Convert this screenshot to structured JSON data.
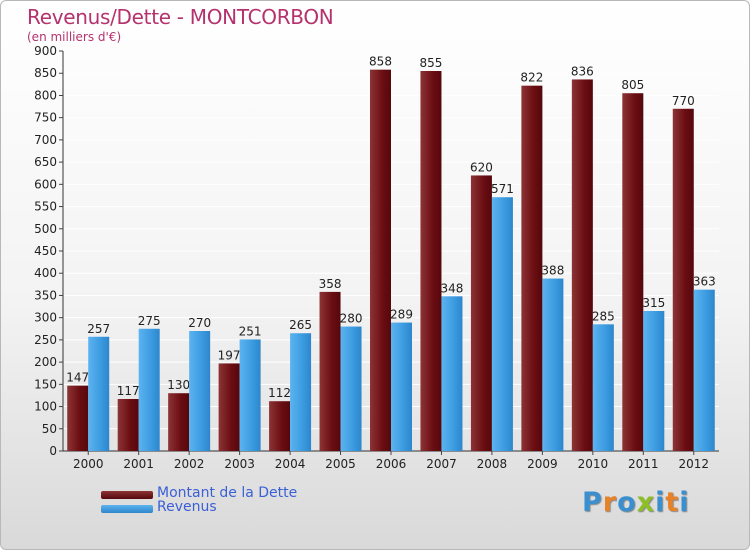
{
  "title": "Revenus/Dette - MONTCORBON",
  "subtitle": "(en milliers d'€)",
  "logo": [
    "P",
    "r",
    "o",
    "x",
    "i",
    "t",
    "i"
  ],
  "colors": {
    "title": "#b5326e",
    "dette": "#6b0d12",
    "revenus": "#3b9be0",
    "legend_text": "#3b5fd6",
    "logo": [
      "#3a8fd0",
      "#e6822a",
      "#3a8fd0",
      "#8cbf26",
      "#3a8fd0",
      "#e6822a",
      "#3a8fd0"
    ]
  },
  "chart_data": {
    "type": "bar",
    "categories": [
      "2000",
      "2001",
      "2002",
      "2003",
      "2004",
      "2005",
      "2006",
      "2007",
      "2008",
      "2009",
      "2010",
      "2011",
      "2012"
    ],
    "series": [
      {
        "name": "Montant de la Dette",
        "values": [
          147,
          117,
          130,
          197,
          112,
          358,
          858,
          855,
          620,
          822,
          836,
          805,
          770
        ]
      },
      {
        "name": "Revenus",
        "values": [
          257,
          275,
          270,
          251,
          265,
          280,
          289,
          348,
          571,
          388,
          285,
          315,
          363
        ]
      }
    ],
    "ylim": [
      0,
      900
    ],
    "yticks": [
      0,
      50,
      100,
      150,
      200,
      250,
      300,
      350,
      400,
      450,
      500,
      550,
      600,
      650,
      700,
      750,
      800,
      850,
      900
    ],
    "grid": true,
    "legend_position": "bottom-left"
  }
}
